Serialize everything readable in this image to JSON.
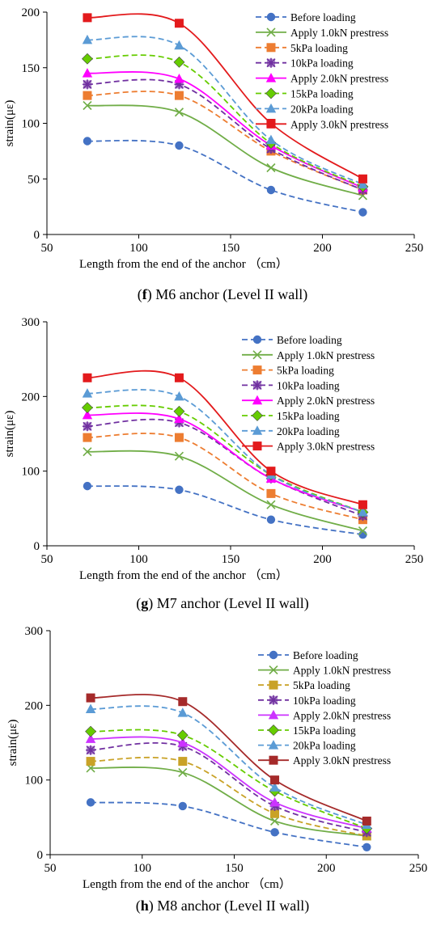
{
  "legend_labels": [
    "Before loading",
    "Apply 1.0kN prestress",
    "5kPa loading",
    "10kPa loading",
    "Apply 2.0kN prestress",
    "15kPa loading",
    "20kPa loading",
    "Apply 3.0kN prestress"
  ],
  "chart_data": [
    {
      "type": "line",
      "caption_letter": "f",
      "caption_rest": " M6 anchor (Level II wall)",
      "xlabel": "Length from the end of the anchor （cm）",
      "ylabel": "strain(με)",
      "xlim": [
        50,
        250
      ],
      "ylim": [
        0,
        200
      ],
      "xticks": [
        50,
        100,
        150,
        200,
        250
      ],
      "yticks": [
        0,
        50,
        100,
        150,
        200
      ],
      "x": [
        72,
        122,
        172,
        222
      ],
      "series": [
        {
          "name": "Before loading",
          "values": [
            84,
            80,
            40,
            20
          ],
          "color": "#4472C4",
          "marker": "circle",
          "dash": true
        },
        {
          "name": "Apply 1.0kN prestress",
          "values": [
            116,
            110,
            60,
            35
          ],
          "color": "#70AD47",
          "marker": "x",
          "dash": false
        },
        {
          "name": "5kPa loading",
          "values": [
            125,
            125,
            75,
            40
          ],
          "color": "#ED7D31",
          "marker": "square",
          "dash": true
        },
        {
          "name": "10kPa loading",
          "values": [
            135,
            135,
            77,
            40
          ],
          "color": "#7030A0",
          "marker": "star",
          "dash": true
        },
        {
          "name": "Apply 2.0kN prestress",
          "values": [
            145,
            140,
            80,
            42
          ],
          "color": "#FF00FF",
          "marker": "triangle",
          "dash": false
        },
        {
          "name": "15kPa loading",
          "values": [
            158,
            155,
            82,
            43
          ],
          "color": "#66CC00",
          "marker": "diamond",
          "dash": true
        },
        {
          "name": "20kPa loading",
          "values": [
            175,
            170,
            85,
            45
          ],
          "color": "#5B9BD5",
          "marker": "triangle",
          "dash": true
        },
        {
          "name": "Apply 3.0kN prestress",
          "values": [
            195,
            190,
            100,
            50
          ],
          "color": "#E31A1C",
          "marker": "square",
          "dash": false
        }
      ]
    },
    {
      "type": "line",
      "caption_letter": "g",
      "caption_rest": " M7 anchor (Level II wall)",
      "xlabel": "Length from the end of the anchor （cm）",
      "ylabel": "strain(με)",
      "xlim": [
        50,
        250
      ],
      "ylim": [
        0,
        300
      ],
      "xticks": [
        50,
        100,
        150,
        200,
        250
      ],
      "yticks": [
        0,
        100,
        200,
        300
      ],
      "x": [
        72,
        122,
        172,
        222
      ],
      "series": [
        {
          "name": "Before loading",
          "values": [
            80,
            75,
            35,
            15
          ],
          "color": "#4472C4",
          "marker": "circle",
          "dash": true
        },
        {
          "name": "Apply 1.0kN prestress",
          "values": [
            126,
            120,
            55,
            20
          ],
          "color": "#70AD47",
          "marker": "x",
          "dash": false
        },
        {
          "name": "5kPa loading",
          "values": [
            145,
            145,
            70,
            35
          ],
          "color": "#ED7D31",
          "marker": "square",
          "dash": true
        },
        {
          "name": "10kPa loading",
          "values": [
            160,
            165,
            90,
            40
          ],
          "color": "#7030A0",
          "marker": "star",
          "dash": true
        },
        {
          "name": "Apply 2.0kN prestress",
          "values": [
            175,
            170,
            90,
            45
          ],
          "color": "#FF00FF",
          "marker": "triangle",
          "dash": false
        },
        {
          "name": "15kPa loading",
          "values": [
            185,
            180,
            95,
            45
          ],
          "color": "#66CC00",
          "marker": "diamond",
          "dash": true
        },
        {
          "name": "20kPa loading",
          "values": [
            204,
            200,
            95,
            45
          ],
          "color": "#5B9BD5",
          "marker": "triangle",
          "dash": true
        },
        {
          "name": "Apply 3.0kN prestress",
          "values": [
            225,
            225,
            100,
            55
          ],
          "color": "#E31A1C",
          "marker": "square",
          "dash": false
        }
      ]
    },
    {
      "type": "line",
      "caption_letter": "h",
      "caption_rest": " M8 anchor (Level II wall)",
      "xlabel": "Length from the end of the anchor （cm）",
      "ylabel": "strain(με)",
      "xlim": [
        50,
        250
      ],
      "ylim": [
        0,
        300
      ],
      "xticks": [
        50,
        100,
        150,
        200,
        250
      ],
      "yticks": [
        0,
        100,
        200,
        300
      ],
      "x": [
        72,
        122,
        172,
        222
      ],
      "series": [
        {
          "name": "Before loading",
          "values": [
            70,
            65,
            30,
            10
          ],
          "color": "#4472C4",
          "marker": "circle",
          "dash": true
        },
        {
          "name": "Apply 1.0kN prestress",
          "values": [
            116,
            110,
            45,
            25
          ],
          "color": "#70AD47",
          "marker": "x",
          "dash": false
        },
        {
          "name": "5kPa loading",
          "values": [
            125,
            125,
            55,
            25
          ],
          "color": "#C9A227",
          "marker": "square",
          "dash": true
        },
        {
          "name": "10kPa loading",
          "values": [
            140,
            145,
            65,
            30
          ],
          "color": "#7030A0",
          "marker": "star",
          "dash": true
        },
        {
          "name": "Apply 2.0kN prestress",
          "values": [
            155,
            150,
            70,
            35
          ],
          "color": "#CC33FF",
          "marker": "triangle",
          "dash": false
        },
        {
          "name": "15kPa loading",
          "values": [
            165,
            160,
            85,
            35
          ],
          "color": "#66CC00",
          "marker": "diamond",
          "dash": true
        },
        {
          "name": "20kPa loading",
          "values": [
            195,
            190,
            90,
            40
          ],
          "color": "#5B9BD5",
          "marker": "triangle",
          "dash": true
        },
        {
          "name": "Apply 3.0kN prestress",
          "values": [
            210,
            205,
            100,
            45
          ],
          "color": "#A52A2A",
          "marker": "square",
          "dash": false
        }
      ]
    }
  ]
}
